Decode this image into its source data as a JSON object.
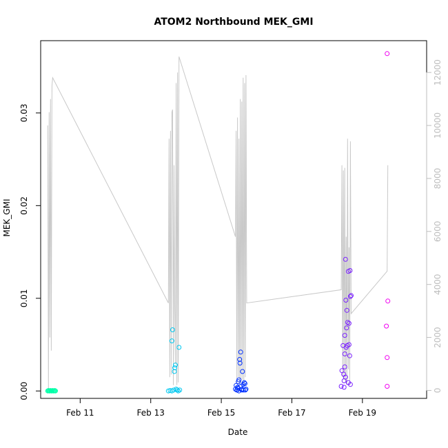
{
  "chart_data": {
    "type": "scatter",
    "title": "ATOM2 Northbound MEK_GMI",
    "xlabel": "Date",
    "ylabel": "MEK_GMI",
    "y2label": "",
    "xlim_days": [
      9.88,
      20.82
    ],
    "ylim": [
      -0.0008,
      0.0378
    ],
    "y2lim": [
      -300,
      13200
    ],
    "x_ticks": [
      {
        "day": 11,
        "label": "Feb 11"
      },
      {
        "day": 13,
        "label": "Feb 13"
      },
      {
        "day": 15,
        "label": "Feb 15"
      },
      {
        "day": 17,
        "label": "Feb 17"
      },
      {
        "day": 19,
        "label": "Feb 19"
      }
    ],
    "y_ticks": [
      {
        "value": 0.0,
        "label": "0.00"
      },
      {
        "value": 0.01,
        "label": "0.01"
      },
      {
        "value": 0.02,
        "label": "0.02"
      },
      {
        "value": 0.03,
        "label": "0.03"
      }
    ],
    "y2_ticks": [
      {
        "value": 0,
        "label": "0"
      },
      {
        "value": 2000,
        "label": "2000"
      },
      {
        "value": 4000,
        "label": "4000"
      },
      {
        "value": 6000,
        "label": "6000"
      },
      {
        "value": 8000,
        "label": "8000"
      },
      {
        "value": 10000,
        "label": "10000"
      },
      {
        "value": 12000,
        "label": "12000"
      }
    ],
    "colors": {
      "line": "#c8c8c8",
      "right_axis": "#bdbdbd",
      "group_colors": [
        "#00ffa8",
        "#00c8f0",
        "#0030ff",
        "#7a20ff",
        "#f000f0"
      ]
    },
    "scatter_series": [
      {
        "color_index": 0,
        "points": [
          [
            10.08,
            0.0
          ],
          [
            10.1,
            5e-05
          ],
          [
            10.12,
            0.0
          ],
          [
            10.14,
            0.0
          ],
          [
            10.16,
            5e-05
          ],
          [
            10.18,
            0.0
          ],
          [
            10.2,
            0.0
          ],
          [
            10.22,
            5e-05
          ],
          [
            10.24,
            0.0
          ],
          [
            10.26,
            0.0
          ],
          [
            10.28,
            5e-05
          ],
          [
            10.3,
            0.0
          ]
        ]
      },
      {
        "color_index": 1,
        "points": [
          [
            13.5,
            0.0
          ],
          [
            13.55,
            5e-05
          ],
          [
            13.6,
            0.0
          ],
          [
            13.62,
            0.0066
          ],
          [
            13.6,
            0.0054
          ],
          [
            13.68,
            0.0025
          ],
          [
            13.7,
            0.0028
          ],
          [
            13.67,
            0.0021
          ],
          [
            13.72,
            0.0002
          ],
          [
            13.75,
            0.0001
          ],
          [
            13.8,
            0.0047
          ],
          [
            13.78,
            0.0
          ],
          [
            13.82,
            0.0001
          ],
          [
            13.65,
            0.0001
          ]
        ]
      },
      {
        "color_index": 2,
        "points": [
          [
            15.4,
            0.0002
          ],
          [
            15.42,
            0.0006
          ],
          [
            15.45,
            0.0001
          ],
          [
            15.48,
            0.001
          ],
          [
            15.5,
            0.0012
          ],
          [
            15.52,
            0.0034
          ],
          [
            15.55,
            0.0042
          ],
          [
            15.53,
            0.003
          ],
          [
            15.56,
            0.0005
          ],
          [
            15.58,
            0.0002
          ],
          [
            15.6,
            0.0021
          ],
          [
            15.62,
            0.0007
          ],
          [
            15.65,
            0.0009
          ],
          [
            15.68,
            0.0001
          ],
          [
            15.7,
            0.0002
          ],
          [
            15.44,
            0.0001
          ],
          [
            15.47,
            0.0003
          ],
          [
            15.5,
            0.0
          ],
          [
            15.58,
            0.0001
          ],
          [
            15.63,
            0.0001
          ],
          [
            15.67,
            0.0008
          ],
          [
            15.46,
            0.0004
          ]
        ]
      },
      {
        "color_index": 3,
        "points": [
          [
            18.4,
            0.0005
          ],
          [
            18.42,
            0.0022
          ],
          [
            18.45,
            0.0049
          ],
          [
            18.47,
            0.0018
          ],
          [
            18.48,
            0.0004
          ],
          [
            18.5,
            0.006
          ],
          [
            18.52,
            0.0142
          ],
          [
            18.53,
            0.0098
          ],
          [
            18.55,
            0.0068
          ],
          [
            18.56,
            0.0087
          ],
          [
            18.57,
            0.0049
          ],
          [
            18.58,
            0.0074
          ],
          [
            18.6,
            0.0129
          ],
          [
            18.62,
            0.0073
          ],
          [
            18.64,
            0.0038
          ],
          [
            18.65,
            0.013
          ],
          [
            18.66,
            0.0102
          ],
          [
            18.68,
            0.0103
          ],
          [
            18.5,
            0.0026
          ],
          [
            18.52,
            0.0015
          ],
          [
            18.54,
            0.0047
          ],
          [
            18.6,
            0.0009
          ],
          [
            18.66,
            0.0007
          ],
          [
            18.48,
            0.0011
          ],
          [
            18.5,
            0.004
          ],
          [
            18.62,
            0.005
          ]
        ]
      },
      {
        "color_index": 4,
        "points": [
          [
            19.7,
            0.0364
          ],
          [
            19.72,
            0.0097
          ],
          [
            19.68,
            0.007
          ],
          [
            19.7,
            0.0036
          ],
          [
            19.7,
            0.0005
          ]
        ]
      }
    ],
    "line_series": [
      [
        10.08,
        10000
      ],
      [
        10.1,
        0
      ],
      [
        10.12,
        10500
      ],
      [
        10.14,
        2000
      ],
      [
        10.16,
        11000
      ],
      [
        10.18,
        1500
      ],
      [
        10.2,
        11500
      ],
      [
        10.22,
        11800
      ],
      [
        13.5,
        3300
      ],
      [
        13.52,
        9500
      ],
      [
        13.54,
        500
      ],
      [
        13.56,
        9800
      ],
      [
        13.58,
        600
      ],
      [
        13.6,
        10500
      ],
      [
        13.62,
        10600
      ],
      [
        13.64,
        200
      ],
      [
        13.66,
        8500
      ],
      [
        13.68,
        3200
      ],
      [
        13.7,
        1000
      ],
      [
        13.72,
        11600
      ],
      [
        13.74,
        200
      ],
      [
        13.76,
        12000
      ],
      [
        13.78,
        300
      ],
      [
        13.8,
        12600
      ],
      [
        15.4,
        5800
      ],
      [
        15.42,
        9800
      ],
      [
        15.44,
        300
      ],
      [
        15.46,
        10300
      ],
      [
        15.48,
        500
      ],
      [
        15.5,
        9500
      ],
      [
        15.52,
        200
      ],
      [
        15.54,
        11000
      ],
      [
        15.56,
        300
      ],
      [
        15.58,
        10900
      ],
      [
        15.6,
        400
      ],
      [
        15.62,
        11800
      ],
      [
        15.64,
        200
      ],
      [
        15.66,
        11600
      ],
      [
        15.68,
        500
      ],
      [
        15.7,
        11900
      ],
      [
        15.72,
        3300
      ],
      [
        18.4,
        3800
      ],
      [
        18.42,
        8500
      ],
      [
        18.44,
        500
      ],
      [
        18.46,
        8300
      ],
      [
        18.48,
        400
      ],
      [
        18.5,
        8400
      ],
      [
        18.52,
        300
      ],
      [
        18.54,
        5800
      ],
      [
        18.56,
        200
      ],
      [
        18.58,
        9500
      ],
      [
        18.6,
        800
      ],
      [
        18.62,
        5400
      ],
      [
        18.64,
        200
      ],
      [
        18.66,
        9400
      ],
      [
        18.68,
        2900
      ],
      [
        19.7,
        4500
      ],
      [
        19.72,
        8500
      ]
    ]
  }
}
